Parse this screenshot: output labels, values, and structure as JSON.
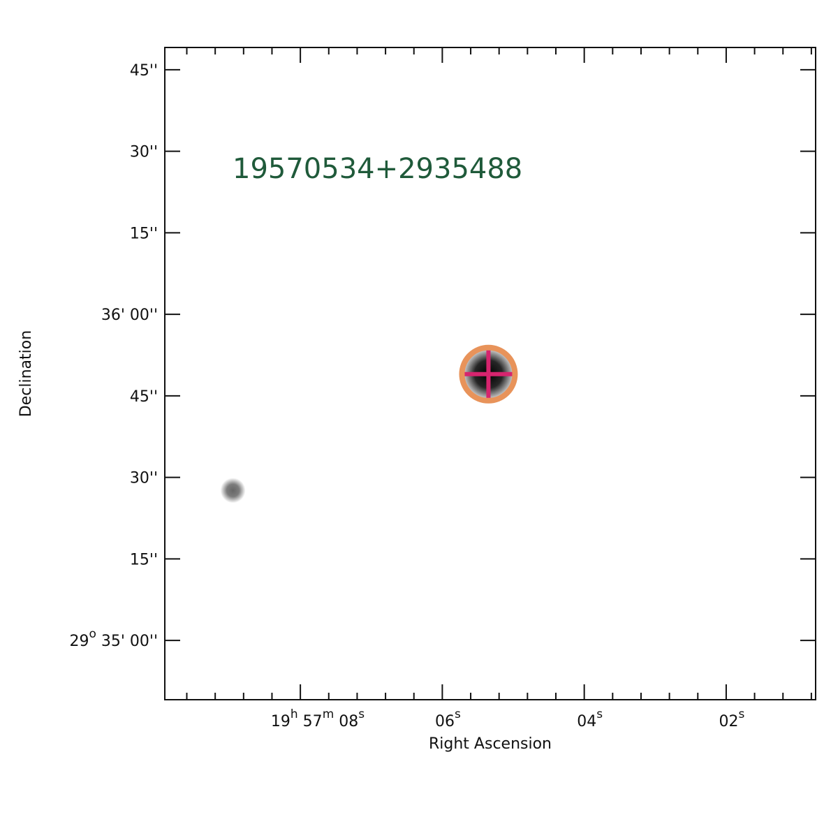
{
  "chart_data": {
    "type": "sky-image",
    "title": "19570534+2935488",
    "x_label": "Right Ascension",
    "y_label": "Declination",
    "xlim": [
      9.91,
      0.74
    ],
    "ylim": [
      -10.9,
      109.1
    ],
    "xticks": [
      {
        "value": 8,
        "label": [
          "19",
          "h",
          " 57",
          "m",
          " 08",
          "s"
        ]
      },
      {
        "value": 6,
        "label": [
          "06",
          "s"
        ]
      },
      {
        "value": 4,
        "label": [
          "04",
          "s"
        ]
      },
      {
        "value": 2,
        "label": [
          "02",
          "s"
        ]
      }
    ],
    "xminorticks": [
      9.6,
      9.2,
      8.8,
      8.4,
      7.6,
      7.2,
      6.8,
      6.4,
      5.6,
      5.2,
      4.8,
      4.4,
      3.6,
      3.2,
      2.8,
      2.4,
      1.6,
      1.2,
      0.8
    ],
    "yticks": [
      {
        "value": 0,
        "label": [
          "29",
          "o",
          " 35' 00''"
        ]
      },
      {
        "value": 15,
        "label": [
          "15''"
        ]
      },
      {
        "value": 30,
        "label": [
          "30''"
        ]
      },
      {
        "value": 45,
        "label": [
          "45''"
        ]
      },
      {
        "value": 60,
        "label": [
          "36' 00''"
        ]
      },
      {
        "value": 75,
        "label": [
          "15''"
        ]
      },
      {
        "value": 90,
        "label": [
          "30''"
        ]
      },
      {
        "value": 105,
        "label": [
          "45''"
        ]
      }
    ],
    "sources": [
      {
        "x": 5.35,
        "y": 49.0
      },
      {
        "x": 8.95,
        "y": 27.6
      }
    ],
    "marker": {
      "x": 5.35,
      "y": 49.0,
      "circle_color": "#e8935a",
      "cross_color": "#d6246e"
    },
    "title_color": "#1f5a3a"
  }
}
